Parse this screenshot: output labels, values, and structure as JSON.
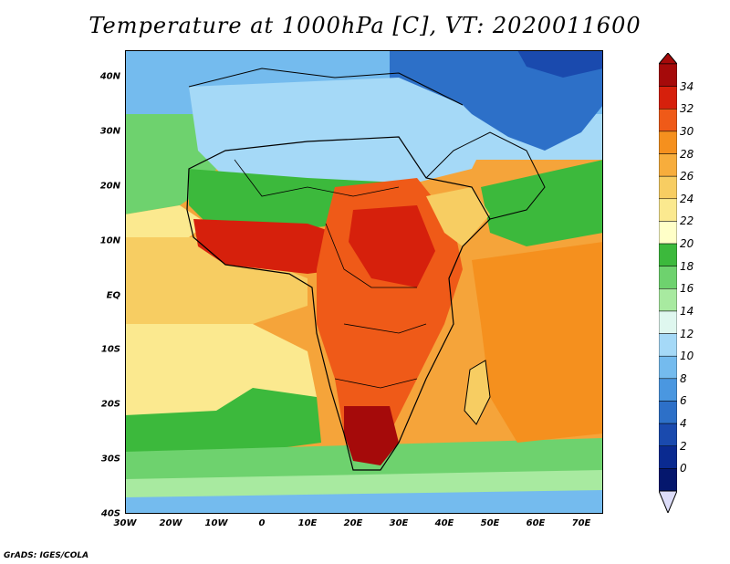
{
  "title": "Temperature at 1000hPa [C], VT: 2020011600",
  "lat_labels": [
    "40N",
    "30N",
    "20N",
    "10N",
    "EQ",
    "10S",
    "20S",
    "30S",
    "40S"
  ],
  "lon_labels": [
    "30W",
    "20W",
    "10W",
    "0",
    "10E",
    "20E",
    "30E",
    "40E",
    "50E",
    "60E",
    "70E"
  ],
  "colorbar": {
    "labels": [
      "34",
      "32",
      "30",
      "28",
      "26",
      "24",
      "22",
      "20",
      "18",
      "16",
      "14",
      "12",
      "10",
      "8",
      "6",
      "4",
      "2",
      "0"
    ],
    "colors": [
      "#a50a0a",
      "#d6200c",
      "#ef5a18",
      "#f5901e",
      "#f7ad3c",
      "#f7cd62",
      "#fbe98f",
      "#ffffc8",
      "#3cb93c",
      "#6ed26e",
      "#a8eaa0",
      "#dff7ef",
      "#a5d9f7",
      "#74bbee",
      "#4a97e0",
      "#2d70c8",
      "#1a4aae",
      "#0a2a90",
      "#05176d"
    ],
    "under_color": "#dcdcf8"
  },
  "credit": "GrADS: IGES/COLA"
}
